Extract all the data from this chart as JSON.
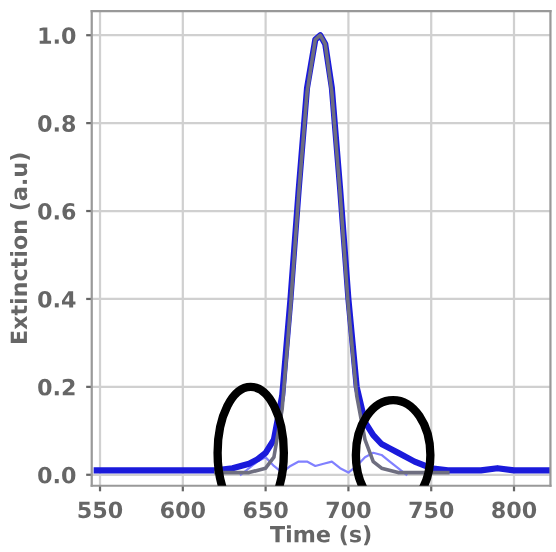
{
  "chart_data": {
    "type": "line",
    "xlabel": "Time (s)",
    "ylabel": "Extinction (a.u)",
    "xlim": [
      545,
      822
    ],
    "ylim": [
      -0.025,
      1.055
    ],
    "xticks": [
      550,
      600,
      650,
      700,
      750,
      800
    ],
    "yticks": [
      {
        "value": 0,
        "label": "0.0"
      },
      {
        "value": 0.2,
        "label": "0.2"
      },
      {
        "value": 0.4,
        "label": "0.4"
      },
      {
        "value": 0.6,
        "label": "0.6"
      },
      {
        "value": 0.8,
        "label": "0.8"
      },
      {
        "value": 1,
        "label": "1.0"
      }
    ],
    "grid": true,
    "marker": "none",
    "line_style": "solid",
    "series": [
      {
        "color": "#1a1adb",
        "x": [
          548,
          560,
          580,
          600,
          620,
          630,
          640,
          645,
          650,
          655,
          660,
          665,
          670,
          675,
          680,
          683,
          686,
          690,
          695,
          700,
          705,
          710,
          715,
          720,
          725,
          730,
          740,
          750,
          760,
          780,
          790,
          800,
          820
        ],
        "values": [
          0.01,
          0.01,
          0.01,
          0.01,
          0.01,
          0.015,
          0.025,
          0.035,
          0.05,
          0.08,
          0.18,
          0.4,
          0.65,
          0.88,
          0.99,
          1.0,
          0.98,
          0.88,
          0.65,
          0.4,
          0.2,
          0.12,
          0.09,
          0.07,
          0.06,
          0.05,
          0.03,
          0.015,
          0.01,
          0.01,
          0.015,
          0.01,
          0.01
        ]
      },
      {
        "color": "#6e6e80",
        "x": [
          620,
          640,
          650,
          655,
          660,
          665,
          670,
          675,
          680,
          683,
          686,
          690,
          695,
          700,
          705,
          710,
          715,
          720,
          730,
          760
        ],
        "values": [
          0.005,
          0.005,
          0.015,
          0.04,
          0.15,
          0.38,
          0.64,
          0.87,
          0.99,
          1.0,
          0.98,
          0.87,
          0.64,
          0.38,
          0.18,
          0.08,
          0.03,
          0.015,
          0.005,
          0.005
        ]
      },
      {
        "color": "#8080ff",
        "x": [
          635,
          645,
          650,
          655,
          660,
          665,
          670,
          675,
          680,
          685,
          690,
          695,
          700,
          705,
          710,
          715,
          720,
          725,
          730,
          735
        ],
        "values": [
          0,
          0.03,
          0.04,
          0.02,
          0.005,
          0.02,
          0.03,
          0.03,
          0.02,
          0.025,
          0.03,
          0.015,
          0.005,
          0.02,
          0.04,
          0.05,
          0.045,
          0.03,
          0.015,
          0
        ]
      }
    ]
  }
}
